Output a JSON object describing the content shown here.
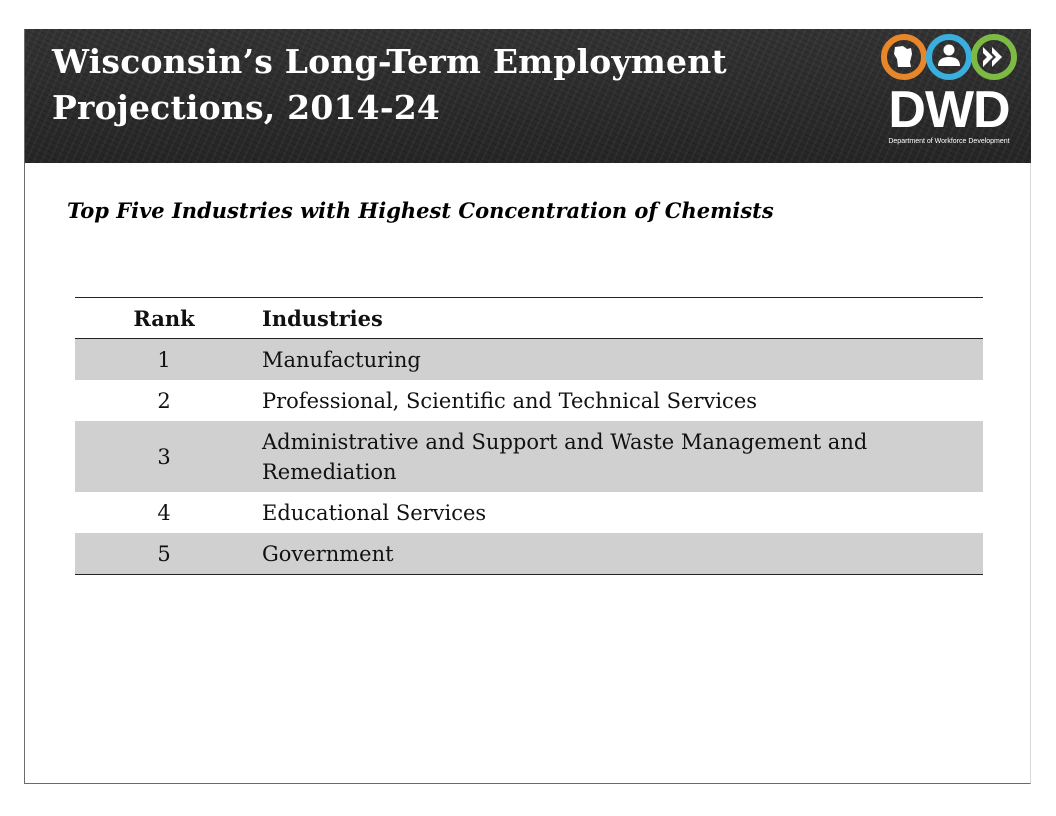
{
  "header": {
    "title_line1": "Wisconsin’s Long-Term Employment",
    "title_line2": "Projections, 2014-24",
    "logo": {
      "text": "DWD",
      "subtext": "Department of Workforce Development",
      "icons": [
        "wisconsin-state-icon",
        "person-icon",
        "forward-arrows-icon"
      ],
      "colors": {
        "orange": "#E8862A",
        "blue": "#3AAEDD",
        "green": "#7DBA43"
      }
    }
  },
  "subtitle": "Top Five Industries with Highest Concentration of Chemists",
  "table": {
    "columns": [
      "Rank",
      "Industries"
    ],
    "rows": [
      {
        "rank": "1",
        "industry": "Manufacturing"
      },
      {
        "rank": "2",
        "industry": "Professional, Scientific and Technical Services"
      },
      {
        "rank": "3",
        "industry": "Administrative and Support and Waste Management and Remediation"
      },
      {
        "rank": "4",
        "industry": "Educational Services"
      },
      {
        "rank": "5",
        "industry": "Government"
      }
    ]
  },
  "colors": {
    "header_bg": "#2C2C2C",
    "row_shade": "#D0D0D0"
  }
}
